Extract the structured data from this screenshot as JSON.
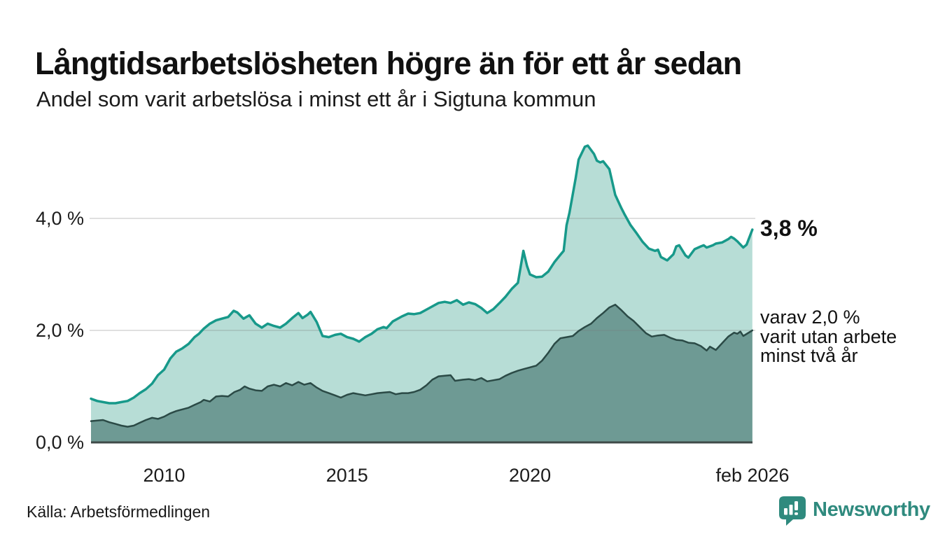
{
  "title": "Långtidsarbetslösheten högre än för ett år sedan",
  "subtitle": "Andel som varit arbetslösa i minst ett år i Sigtuna kommun",
  "source": "Källa: Arbetsförmedlingen",
  "branding": {
    "name": "Newsworthy",
    "logo_icon": "bar-chart-speech-bubble-icon",
    "color": "#2f8a7e"
  },
  "annotations": {
    "latest_total": "3,8 %",
    "secondary_lines": [
      "varav 2,0 %",
      "varit utan arbete",
      "minst två år"
    ]
  },
  "colors": {
    "total_line": "#17998a",
    "total_fill": "#b7ddd6",
    "two_year_line": "#2b4a46",
    "two_year_fill": "#6e9a94",
    "gridline": "#d9d9d9",
    "baseline": "#3f4a48",
    "text": "#1c1c1c",
    "brand_teal": "#2f8a7e"
  },
  "chart_data": {
    "type": "area",
    "title": "Långtidsarbetslösheten högre än för ett år sedan",
    "subtitle": "Andel som varit arbetslösa i minst ett år i Sigtuna kommun",
    "xlabel": "",
    "ylabel": "",
    "y_unit": "%",
    "grid": "horizontal",
    "legend_position": "right-annotations",
    "x_range": [
      2008.0,
      2026.083
    ],
    "y_range": [
      0,
      5.4
    ],
    "x_ticks": [
      {
        "value": 2010,
        "label": "2010"
      },
      {
        "value": 2015,
        "label": "2015"
      },
      {
        "value": 2020,
        "label": "2020"
      },
      {
        "value": 2026.083,
        "label": "feb 2026"
      }
    ],
    "y_ticks": [
      {
        "value": 0,
        "label": "0,0 %"
      },
      {
        "value": 2,
        "label": "2,0 %"
      },
      {
        "value": 4,
        "label": "4,0 %"
      }
    ],
    "latest": {
      "period": "feb 2026",
      "total_pct": 3.8,
      "two_year_pct": 2.0
    },
    "series": [
      {
        "id": "minst-ett-ar",
        "name": "Andel som varit arbetslösa i minst ett år",
        "line_color": "#17998a",
        "fill_color": "#b7ddd6",
        "line_width": 3.5,
        "points": [
          [
            2008.0,
            0.78
          ],
          [
            2008.17,
            0.74
          ],
          [
            2008.33,
            0.72
          ],
          [
            2008.5,
            0.7
          ],
          [
            2008.67,
            0.7
          ],
          [
            2008.83,
            0.72
          ],
          [
            2009.0,
            0.74
          ],
          [
            2009.17,
            0.8
          ],
          [
            2009.33,
            0.88
          ],
          [
            2009.5,
            0.95
          ],
          [
            2009.67,
            1.05
          ],
          [
            2009.83,
            1.2
          ],
          [
            2010.0,
            1.3
          ],
          [
            2010.17,
            1.5
          ],
          [
            2010.33,
            1.62
          ],
          [
            2010.5,
            1.68
          ],
          [
            2010.67,
            1.76
          ],
          [
            2010.83,
            1.88
          ],
          [
            2010.95,
            1.94
          ],
          [
            2011.08,
            2.03
          ],
          [
            2011.25,
            2.12
          ],
          [
            2011.42,
            2.18
          ],
          [
            2011.58,
            2.21
          ],
          [
            2011.75,
            2.24
          ],
          [
            2011.9,
            2.35
          ],
          [
            2012.0,
            2.32
          ],
          [
            2012.17,
            2.21
          ],
          [
            2012.33,
            2.27
          ],
          [
            2012.5,
            2.12
          ],
          [
            2012.67,
            2.05
          ],
          [
            2012.83,
            2.12
          ],
          [
            2013.0,
            2.08
          ],
          [
            2013.17,
            2.05
          ],
          [
            2013.33,
            2.12
          ],
          [
            2013.5,
            2.22
          ],
          [
            2013.67,
            2.31
          ],
          [
            2013.78,
            2.22
          ],
          [
            2013.92,
            2.28
          ],
          [
            2014.0,
            2.33
          ],
          [
            2014.17,
            2.15
          ],
          [
            2014.33,
            1.9
          ],
          [
            2014.5,
            1.88
          ],
          [
            2014.67,
            1.92
          ],
          [
            2014.83,
            1.94
          ],
          [
            2015.0,
            1.88
          ],
          [
            2015.17,
            1.85
          ],
          [
            2015.33,
            1.8
          ],
          [
            2015.5,
            1.88
          ],
          [
            2015.67,
            1.94
          ],
          [
            2015.83,
            2.02
          ],
          [
            2016.0,
            2.06
          ],
          [
            2016.08,
            2.04
          ],
          [
            2016.25,
            2.16
          ],
          [
            2016.5,
            2.25
          ],
          [
            2016.67,
            2.3
          ],
          [
            2016.83,
            2.29
          ],
          [
            2017.0,
            2.31
          ],
          [
            2017.25,
            2.4
          ],
          [
            2017.5,
            2.49
          ],
          [
            2017.67,
            2.51
          ],
          [
            2017.83,
            2.49
          ],
          [
            2018.0,
            2.54
          ],
          [
            2018.17,
            2.46
          ],
          [
            2018.33,
            2.5
          ],
          [
            2018.5,
            2.47
          ],
          [
            2018.67,
            2.4
          ],
          [
            2018.83,
            2.31
          ],
          [
            2019.0,
            2.38
          ],
          [
            2019.17,
            2.49
          ],
          [
            2019.33,
            2.6
          ],
          [
            2019.5,
            2.74
          ],
          [
            2019.67,
            2.85
          ],
          [
            2019.82,
            3.42
          ],
          [
            2019.92,
            3.15
          ],
          [
            2020.0,
            3.0
          ],
          [
            2020.17,
            2.95
          ],
          [
            2020.33,
            2.96
          ],
          [
            2020.5,
            3.05
          ],
          [
            2020.67,
            3.22
          ],
          [
            2020.83,
            3.35
          ],
          [
            2020.92,
            3.42
          ],
          [
            2021.0,
            3.88
          ],
          [
            2021.08,
            4.1
          ],
          [
            2021.25,
            4.72
          ],
          [
            2021.33,
            5.05
          ],
          [
            2021.5,
            5.28
          ],
          [
            2021.58,
            5.3
          ],
          [
            2021.75,
            5.15
          ],
          [
            2021.83,
            5.03
          ],
          [
            2021.92,
            5.0
          ],
          [
            2022.0,
            5.02
          ],
          [
            2022.17,
            4.88
          ],
          [
            2022.33,
            4.42
          ],
          [
            2022.5,
            4.18
          ],
          [
            2022.58,
            4.08
          ],
          [
            2022.75,
            3.88
          ],
          [
            2022.92,
            3.73
          ],
          [
            2023.08,
            3.58
          ],
          [
            2023.25,
            3.46
          ],
          [
            2023.42,
            3.42
          ],
          [
            2023.5,
            3.44
          ],
          [
            2023.58,
            3.31
          ],
          [
            2023.75,
            3.25
          ],
          [
            2023.92,
            3.36
          ],
          [
            2024.0,
            3.5
          ],
          [
            2024.08,
            3.52
          ],
          [
            2024.25,
            3.34
          ],
          [
            2024.33,
            3.3
          ],
          [
            2024.5,
            3.45
          ],
          [
            2024.67,
            3.5
          ],
          [
            2024.75,
            3.52
          ],
          [
            2024.83,
            3.48
          ],
          [
            2025.0,
            3.52
          ],
          [
            2025.08,
            3.55
          ],
          [
            2025.25,
            3.57
          ],
          [
            2025.42,
            3.63
          ],
          [
            2025.5,
            3.67
          ],
          [
            2025.58,
            3.64
          ],
          [
            2025.67,
            3.59
          ],
          [
            2025.83,
            3.48
          ],
          [
            2025.92,
            3.53
          ],
          [
            2026.08,
            3.8
          ]
        ]
      },
      {
        "id": "minst-tva-ar",
        "name": "varav minst två år utan arbete",
        "line_color": "#2b4a46",
        "fill_color": "#6e9a94",
        "line_width": 2.5,
        "points": [
          [
            2008.0,
            0.38
          ],
          [
            2008.17,
            0.39
          ],
          [
            2008.33,
            0.4
          ],
          [
            2008.5,
            0.36
          ],
          [
            2008.67,
            0.33
          ],
          [
            2008.83,
            0.3
          ],
          [
            2009.0,
            0.28
          ],
          [
            2009.17,
            0.3
          ],
          [
            2009.33,
            0.35
          ],
          [
            2009.5,
            0.4
          ],
          [
            2009.67,
            0.44
          ],
          [
            2009.83,
            0.42
          ],
          [
            2010.0,
            0.46
          ],
          [
            2010.17,
            0.52
          ],
          [
            2010.33,
            0.56
          ],
          [
            2010.5,
            0.59
          ],
          [
            2010.67,
            0.62
          ],
          [
            2010.83,
            0.67
          ],
          [
            2011.0,
            0.72
          ],
          [
            2011.08,
            0.76
          ],
          [
            2011.25,
            0.73
          ],
          [
            2011.42,
            0.82
          ],
          [
            2011.58,
            0.83
          ],
          [
            2011.75,
            0.82
          ],
          [
            2011.92,
            0.9
          ],
          [
            2012.08,
            0.94
          ],
          [
            2012.2,
            1.0
          ],
          [
            2012.33,
            0.96
          ],
          [
            2012.5,
            0.93
          ],
          [
            2012.67,
            0.92
          ],
          [
            2012.83,
            1.0
          ],
          [
            2013.0,
            1.03
          ],
          [
            2013.17,
            1.0
          ],
          [
            2013.33,
            1.06
          ],
          [
            2013.5,
            1.02
          ],
          [
            2013.67,
            1.08
          ],
          [
            2013.83,
            1.03
          ],
          [
            2014.0,
            1.06
          ],
          [
            2014.17,
            0.98
          ],
          [
            2014.33,
            0.92
          ],
          [
            2014.5,
            0.88
          ],
          [
            2014.67,
            0.84
          ],
          [
            2014.83,
            0.8
          ],
          [
            2015.0,
            0.85
          ],
          [
            2015.17,
            0.88
          ],
          [
            2015.33,
            0.86
          ],
          [
            2015.5,
            0.84
          ],
          [
            2015.67,
            0.86
          ],
          [
            2015.83,
            0.88
          ],
          [
            2016.0,
            0.89
          ],
          [
            2016.17,
            0.9
          ],
          [
            2016.33,
            0.86
          ],
          [
            2016.5,
            0.88
          ],
          [
            2016.67,
            0.88
          ],
          [
            2016.83,
            0.9
          ],
          [
            2017.0,
            0.94
          ],
          [
            2017.17,
            1.02
          ],
          [
            2017.33,
            1.12
          ],
          [
            2017.5,
            1.18
          ],
          [
            2017.67,
            1.19
          ],
          [
            2017.83,
            1.2
          ],
          [
            2017.95,
            1.1
          ],
          [
            2018.17,
            1.12
          ],
          [
            2018.33,
            1.13
          ],
          [
            2018.5,
            1.11
          ],
          [
            2018.67,
            1.15
          ],
          [
            2018.83,
            1.09
          ],
          [
            2019.0,
            1.11
          ],
          [
            2019.17,
            1.13
          ],
          [
            2019.33,
            1.19
          ],
          [
            2019.5,
            1.24
          ],
          [
            2019.67,
            1.28
          ],
          [
            2019.83,
            1.31
          ],
          [
            2020.0,
            1.34
          ],
          [
            2020.17,
            1.37
          ],
          [
            2020.33,
            1.46
          ],
          [
            2020.5,
            1.6
          ],
          [
            2020.67,
            1.76
          ],
          [
            2020.83,
            1.86
          ],
          [
            2021.0,
            1.88
          ],
          [
            2021.17,
            1.9
          ],
          [
            2021.33,
            1.99
          ],
          [
            2021.5,
            2.06
          ],
          [
            2021.67,
            2.12
          ],
          [
            2021.83,
            2.22
          ],
          [
            2022.0,
            2.31
          ],
          [
            2022.17,
            2.41
          ],
          [
            2022.33,
            2.46
          ],
          [
            2022.5,
            2.36
          ],
          [
            2022.67,
            2.25
          ],
          [
            2022.83,
            2.17
          ],
          [
            2023.0,
            2.06
          ],
          [
            2023.17,
            1.95
          ],
          [
            2023.33,
            1.89
          ],
          [
            2023.5,
            1.91
          ],
          [
            2023.67,
            1.92
          ],
          [
            2023.83,
            1.87
          ],
          [
            2024.0,
            1.83
          ],
          [
            2024.17,
            1.82
          ],
          [
            2024.33,
            1.78
          ],
          [
            2024.5,
            1.77
          ],
          [
            2024.67,
            1.72
          ],
          [
            2024.83,
            1.64
          ],
          [
            2024.92,
            1.71
          ],
          [
            2025.08,
            1.65
          ],
          [
            2025.25,
            1.77
          ],
          [
            2025.42,
            1.89
          ],
          [
            2025.58,
            1.96
          ],
          [
            2025.67,
            1.94
          ],
          [
            2025.75,
            1.98
          ],
          [
            2025.83,
            1.9
          ],
          [
            2026.08,
            2.0
          ]
        ]
      }
    ]
  }
}
